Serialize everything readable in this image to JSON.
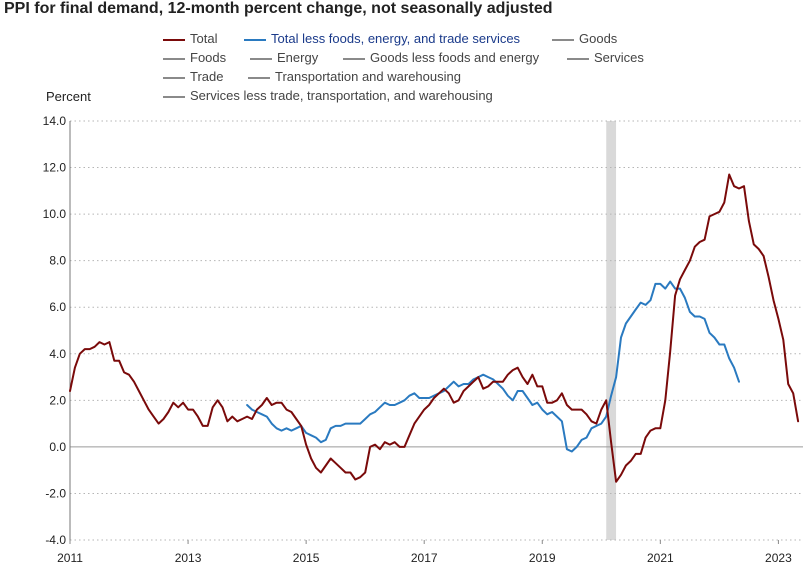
{
  "title": "PPI for final demand, 12-month percent change, not seasonally adjusted",
  "chart_data": {
    "type": "line",
    "title": "PPI for final demand, 12-month percent change, not seasonally adjusted",
    "ylabel": "Percent",
    "xlabel": "",
    "ylim": [
      -4.0,
      14.0
    ],
    "xlim": [
      "2011-01",
      "2023-06"
    ],
    "y_ticks": [
      "14.0",
      "12.0",
      "10.0",
      "8.0",
      "6.0",
      "4.0",
      "2.0",
      "0.0",
      "-2.0",
      "-4.0"
    ],
    "x_ticks": [
      "2011",
      "2013",
      "2015",
      "2017",
      "2019",
      "2021",
      "2023"
    ],
    "grid": "horizontal dotted",
    "recession_band": {
      "start": "2020-02",
      "end": "2020-04"
    },
    "legend": [
      {
        "name": "Total",
        "color": "#7a0a0a"
      },
      {
        "name": "Total less foods, energy, and trade services",
        "color": "#2a7ac0"
      },
      {
        "name": "Goods",
        "color": "#8a8a8a"
      },
      {
        "name": "Foods",
        "color": "#8a8a8a"
      },
      {
        "name": "Energy",
        "color": "#8a8a8a"
      },
      {
        "name": "Goods less foods and energy",
        "color": "#8a8a8a"
      },
      {
        "name": "Services",
        "color": "#8a8a8a"
      },
      {
        "name": "Trade",
        "color": "#8a8a8a"
      },
      {
        "name": "Transportation and warehousing",
        "color": "#8a8a8a"
      },
      {
        "name": "Services less trade, transportation, and warehousing",
        "color": "#8a8a8a"
      }
    ],
    "series": [
      {
        "name": "Total",
        "color": "#7a0a0a",
        "start": "2011-01",
        "values": [
          2.4,
          3.4,
          4.0,
          4.2,
          4.2,
          4.3,
          4.5,
          4.4,
          4.5,
          3.7,
          3.7,
          3.2,
          3.1,
          2.8,
          2.4,
          2.0,
          1.6,
          1.3,
          1.0,
          1.2,
          1.5,
          1.9,
          1.7,
          1.9,
          1.6,
          1.6,
          1.3,
          0.9,
          0.9,
          1.7,
          2.0,
          1.7,
          1.1,
          1.3,
          1.1,
          1.2,
          1.3,
          1.2,
          1.6,
          1.8,
          2.1,
          1.8,
          1.9,
          1.9,
          1.6,
          1.5,
          1.2,
          0.9,
          0.1,
          -0.5,
          -0.9,
          -1.1,
          -0.8,
          -0.5,
          -0.7,
          -0.9,
          -1.1,
          -1.1,
          -1.4,
          -1.3,
          -1.1,
          0.0,
          0.1,
          -0.1,
          0.2,
          0.1,
          0.2,
          0.0,
          0.0,
          0.5,
          1.0,
          1.3,
          1.6,
          1.8,
          2.1,
          2.3,
          2.5,
          2.3,
          1.9,
          2.0,
          2.4,
          2.6,
          2.8,
          3.0,
          2.5,
          2.6,
          2.8,
          2.8,
          2.8,
          3.1,
          3.3,
          3.4,
          3.0,
          2.7,
          3.1,
          2.6,
          2.6,
          1.9,
          1.9,
          2.0,
          2.3,
          1.8,
          1.6,
          1.6,
          1.6,
          1.4,
          1.1,
          1.0,
          1.6,
          2.0,
          0.2,
          -1.5,
          -1.2,
          -0.8,
          -0.6,
          -0.3,
          -0.3,
          0.4,
          0.7,
          0.8,
          0.8,
          2.0,
          4.1,
          6.5,
          7.2,
          7.6,
          8.0,
          8.6,
          8.8,
          8.9,
          9.9,
          10.0,
          10.1,
          10.5,
          11.7,
          11.2,
          11.1,
          11.2,
          9.7,
          8.7,
          8.5,
          8.2,
          7.3,
          6.3,
          5.5,
          4.6,
          2.7,
          2.3,
          1.1
        ]
      },
      {
        "name": "Total less foods, energy, and trade services",
        "color": "#2a7ac0",
        "start": "2014-01",
        "values": [
          1.8,
          1.6,
          1.5,
          1.4,
          1.3,
          1.0,
          0.8,
          0.7,
          0.8,
          0.7,
          0.8,
          0.9,
          0.6,
          0.5,
          0.4,
          0.2,
          0.3,
          0.8,
          0.9,
          0.9,
          1.0,
          1.0,
          1.0,
          1.0,
          1.2,
          1.4,
          1.5,
          1.7,
          1.9,
          1.8,
          1.8,
          1.9,
          2.0,
          2.2,
          2.3,
          2.1,
          2.1,
          2.1,
          2.2,
          2.3,
          2.4,
          2.6,
          2.8,
          2.6,
          2.7,
          2.7,
          2.9,
          3.0,
          3.1,
          3.0,
          2.9,
          2.7,
          2.5,
          2.2,
          2.0,
          2.4,
          2.4,
          2.1,
          1.8,
          1.9,
          1.6,
          1.4,
          1.5,
          1.3,
          1.1,
          -0.1,
          -0.2,
          0.0,
          0.3,
          0.4,
          0.8,
          0.9,
          1.0,
          1.3,
          2.2,
          3.0,
          4.7,
          5.3,
          5.6,
          5.9,
          6.2,
          6.1,
          6.3,
          7.0,
          7.0,
          6.8,
          7.1,
          6.8,
          6.8,
          6.4,
          5.8,
          5.6,
          5.6,
          5.5,
          4.9,
          4.7,
          4.4,
          4.4,
          3.8,
          3.4,
          2.8
        ]
      }
    ]
  }
}
